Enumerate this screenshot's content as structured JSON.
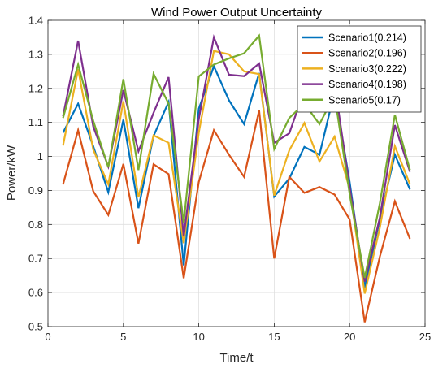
{
  "chart_data": {
    "type": "line",
    "title": "Wind Power Output Uncertainty",
    "xlabel": "Time/t",
    "ylabel": "Power/kW",
    "xlim": [
      0,
      25
    ],
    "ylim": [
      0.5,
      1.4
    ],
    "xticks": [
      "0",
      "5",
      "10",
      "15",
      "20",
      "25"
    ],
    "yticks": [
      "0.5",
      "0.6",
      "0.7",
      "0.8",
      "0.9",
      "1",
      "1.1",
      "1.2",
      "1.3",
      "1.4"
    ],
    "grid": true,
    "legend_position": "top-right",
    "x": [
      1,
      2,
      3,
      4,
      5,
      6,
      7,
      8,
      9,
      10,
      11,
      12,
      13,
      14,
      15,
      16,
      17,
      18,
      19,
      20,
      21,
      22,
      23,
      24
    ],
    "series": [
      {
        "name": "Scenario1(0.214)",
        "color": "#0072BD",
        "values": [
          1.07,
          1.155,
          1.03,
          0.895,
          1.108,
          0.848,
          1.06,
          1.16,
          0.68,
          1.14,
          1.265,
          1.165,
          1.095,
          1.245,
          0.882,
          0.935,
          1.028,
          1.005,
          1.19,
          0.925,
          0.615,
          0.815,
          1.005,
          0.903
        ]
      },
      {
        "name": "Scenario2(0.196)",
        "color": "#D95319",
        "values": [
          0.918,
          1.077,
          0.898,
          0.828,
          0.978,
          0.744,
          0.977,
          0.948,
          0.642,
          0.925,
          1.077,
          1.005,
          0.94,
          1.135,
          0.7,
          0.94,
          0.893,
          0.91,
          0.888,
          0.815,
          0.513,
          0.705,
          0.868,
          0.758
        ]
      },
      {
        "name": "Scenario3(0.222)",
        "color": "#EDB120",
        "values": [
          1.032,
          1.256,
          1.02,
          0.918,
          1.162,
          0.88,
          1.062,
          1.04,
          0.745,
          1.07,
          1.31,
          1.3,
          1.25,
          1.242,
          0.885,
          1.018,
          1.098,
          0.985,
          1.058,
          0.905,
          0.597,
          0.79,
          1.03,
          0.918
        ]
      },
      {
        "name": "Scenario4(0.198)",
        "color": "#7E2F8E",
        "values": [
          1.118,
          1.34,
          1.088,
          0.97,
          1.195,
          1.015,
          1.128,
          1.233,
          0.765,
          1.11,
          1.35,
          1.24,
          1.236,
          1.273,
          1.04,
          1.068,
          1.195,
          1.148,
          1.213,
          0.91,
          0.632,
          0.82,
          1.092,
          0.955
        ]
      },
      {
        "name": "Scenario5(0.17)",
        "color": "#77AC30",
        "values": [
          1.113,
          1.27,
          1.105,
          0.968,
          1.227,
          0.96,
          1.243,
          1.155,
          0.805,
          1.235,
          1.27,
          1.288,
          1.303,
          1.355,
          1.022,
          1.113,
          1.155,
          1.095,
          1.18,
          0.89,
          0.643,
          0.862,
          1.122,
          0.96
        ]
      }
    ]
  }
}
